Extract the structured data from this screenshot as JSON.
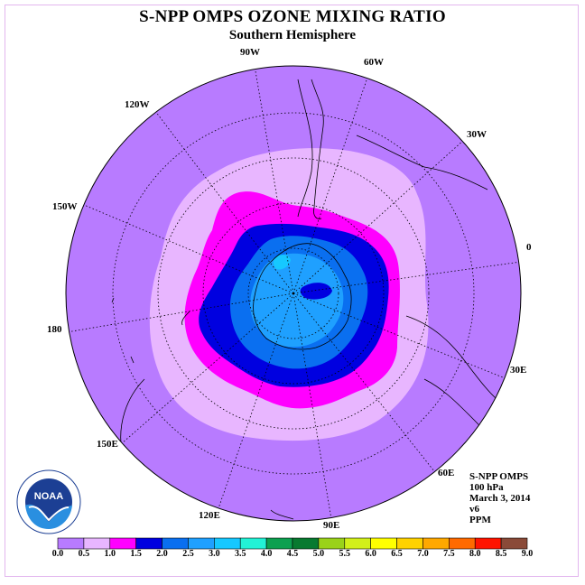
{
  "title": "S-NPP OMPS OZONE MIXING RATIO",
  "subtitle": "Southern Hemisphere",
  "longitude_labels": [
    {
      "text": "90W",
      "id": "lon-90w"
    },
    {
      "text": "60W",
      "id": "lon-60w"
    },
    {
      "text": "120W",
      "id": "lon-120w"
    },
    {
      "text": "30W",
      "id": "lon-30w"
    },
    {
      "text": "150W",
      "id": "lon-150w"
    },
    {
      "text": "0",
      "id": "lon-0"
    },
    {
      "text": "180",
      "id": "lon-180"
    },
    {
      "text": "30E",
      "id": "lon-30e"
    },
    {
      "text": "150E",
      "id": "lon-150e"
    },
    {
      "text": "60E",
      "id": "lon-60e"
    },
    {
      "text": "120E",
      "id": "lon-120e"
    },
    {
      "text": "90E",
      "id": "lon-90e"
    }
  ],
  "info": {
    "instrument": "S-NPP OMPS",
    "level": "100 hPa",
    "date": "March 3, 2014",
    "version": "v6",
    "units": "PPM"
  },
  "logo_text": "NOAA",
  "colorbar": {
    "ticks": [
      "0.0",
      "0.5",
      "1.0",
      "1.5",
      "2.0",
      "2.5",
      "3.0",
      "3.5",
      "4.0",
      "4.5",
      "5.0",
      "5.5",
      "6.0",
      "6.5",
      "7.0",
      "7.5",
      "8.0",
      "8.5",
      "9.0"
    ],
    "colors": [
      "#b87bff",
      "#e8b6ff",
      "#ff00ff",
      "#0000e0",
      "#0a6ff0",
      "#1fa0ff",
      "#16c8ff",
      "#22f2d6",
      "#0da050",
      "#087a30",
      "#9ad21a",
      "#d2f01a",
      "#ffff00",
      "#ffd200",
      "#ffa800",
      "#ff6a00",
      "#ff1400",
      "#8a4a38"
    ]
  },
  "colors": {
    "background_field": "#b87bff",
    "light_ring": "#e8b6ff",
    "magenta_ring": "#ff00ff",
    "dark_blue": "#0000e0",
    "core_blue": "#0a6ff0",
    "inner_blue": "#1fa0ff"
  }
}
